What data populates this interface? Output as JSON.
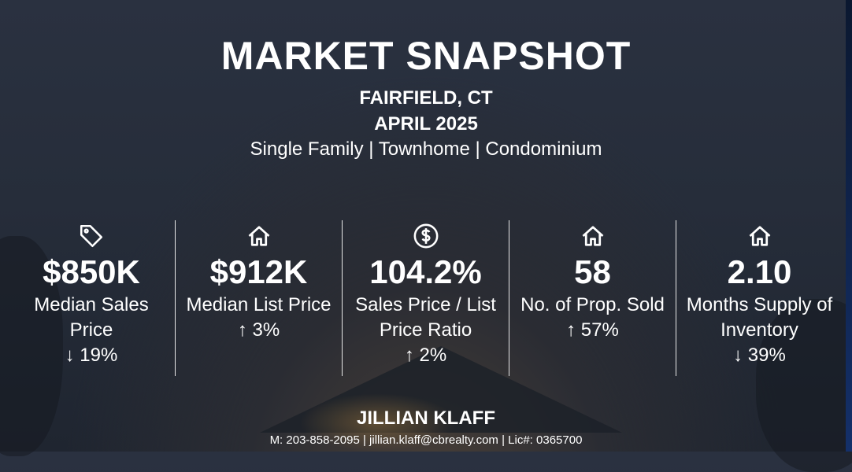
{
  "header": {
    "title": "MARKET SNAPSHOT",
    "location": "FAIRFIELD, CT",
    "period": "APRIL 2025",
    "property_types": "Single Family | Townhome | Condominium"
  },
  "stats": [
    {
      "icon": "tag-icon",
      "value": "$850K",
      "label": "Median Sales Price",
      "change": "↓ 19%",
      "direction": "down"
    },
    {
      "icon": "house-icon",
      "value": "$912K",
      "label": "Median List Price",
      "change": "↑ 3%",
      "direction": "up"
    },
    {
      "icon": "dollar-circle-icon",
      "value": "104.2%",
      "label": "Sales Price / List Price Ratio",
      "change": "↑ 2%",
      "direction": "up"
    },
    {
      "icon": "house-icon",
      "value": "58",
      "label": "No. of Prop. Sold",
      "change": "↑ 57%",
      "direction": "up"
    },
    {
      "icon": "house-icon",
      "value": "2.10",
      "label": "Months Supply of Inventory",
      "change": "↓ 39%",
      "direction": "down"
    }
  ],
  "footer": {
    "agent_name": "JILLIAN KLAFF",
    "contact": "M: 203-858-2095 | jillian.klaff@cbrealty.com | Lic#: 0365700"
  }
}
